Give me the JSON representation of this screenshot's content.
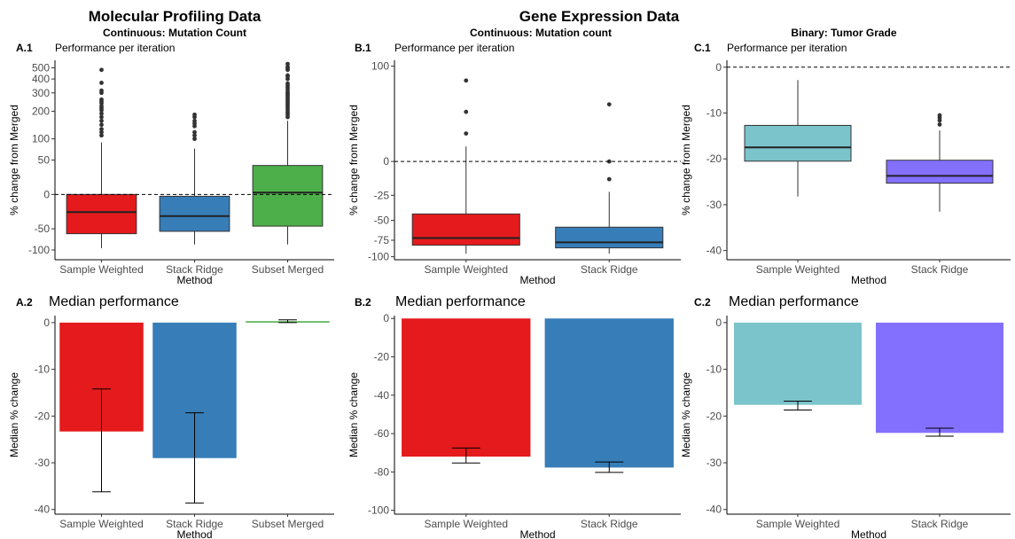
{
  "figure": {
    "left_title": "Molecular Profiling Data",
    "right_title": "Gene Expression Data",
    "colors": {
      "Sample Weighted red": "#e41a1c",
      "Stack Ridge blue": "#377eb8",
      "Subset Merged green": "#4daf4a",
      "Sample Weighted teal": "#7bc4cc",
      "Stack Ridge purple": "#8470ff"
    }
  },
  "chart_data": [
    {
      "id": "A1",
      "panel_label": "A.1",
      "type": "boxplot",
      "group_title": "Continuous: Mutation Count",
      "subtitle": "Performance per iteration",
      "xlabel": "Method",
      "ylabel": "% change from Merged",
      "categories": [
        "Sample Weighted",
        "Stack Ridge",
        "Subset Merged"
      ],
      "colors": [
        "#e41a1c",
        "#377eb8",
        "#4daf4a"
      ],
      "y_scale": "pseudo-log (compressed near 0)",
      "yticks": [
        -100,
        -50,
        0,
        50,
        100,
        200,
        300,
        400,
        500
      ],
      "ylim": [
        -130,
        580
      ],
      "reference_line": 0,
      "boxes": [
        {
          "min": -95,
          "q1": -60,
          "median": -22,
          "q3": 0,
          "max": 90,
          "outliers": [
            110,
            120,
            130,
            145,
            160,
            175,
            190,
            205,
            215,
            225,
            240,
            250,
            260,
            300,
            315,
            370,
            480
          ]
        },
        {
          "min": -85,
          "q1": -55,
          "median": -28,
          "q3": -2,
          "max": 75,
          "outliers": [
            100,
            110,
            120,
            140,
            150,
            160,
            175,
            185
          ]
        },
        {
          "min": -85,
          "q1": -45,
          "median": 2,
          "q3": 40,
          "max": 160,
          "outliers": [
            175,
            185,
            195,
            205,
            215,
            225,
            235,
            245,
            255,
            265,
            275,
            285,
            295,
            305,
            320,
            335,
            350,
            365,
            400,
            420,
            430,
            480,
            495,
            510,
            540
          ]
        }
      ]
    },
    {
      "id": "B1",
      "panel_label": "B.1",
      "type": "boxplot",
      "group_title": "Continuous: Mutation count",
      "subtitle": "Performance per iteration",
      "xlabel": "Method",
      "ylabel": "% change from Merged",
      "categories": [
        "Sample Weighted",
        "Stack Ridge"
      ],
      "colors": [
        "#e41a1c",
        "#377eb8"
      ],
      "y_scale": "pseudo-log (compressed near 0)",
      "yticks": [
        -100,
        -75,
        -50,
        -25,
        0,
        100
      ],
      "ylim": [
        -105,
        110
      ],
      "reference_line": 0,
      "boxes": [
        {
          "min": -95,
          "q1": -82,
          "median": -72,
          "q3": -43,
          "max": 10,
          "outliers": [
            20,
            40,
            78
          ]
        },
        {
          "min": -95,
          "q1": -86,
          "median": -78,
          "q3": -58,
          "max": -22,
          "outliers": [
            -12,
            0,
            48
          ]
        }
      ]
    },
    {
      "id": "C1",
      "panel_label": "C.1",
      "type": "boxplot",
      "group_title": "Binary: Tumor Grade",
      "subtitle": "Performance per iteration",
      "xlabel": "Method",
      "ylabel": "% change from Merged",
      "categories": [
        "Sample Weighted",
        "Stack Ridge"
      ],
      "colors": [
        "#7bc4cc",
        "#8470ff"
      ],
      "y_scale": "linear",
      "yticks": [
        -40,
        -30,
        -20,
        -10,
        0
      ],
      "ylim": [
        -42,
        1.5
      ],
      "reference_line": 0,
      "boxes": [
        {
          "min": -28.2,
          "q1": -20.5,
          "median": -17.5,
          "q3": -12.7,
          "max": -2.8,
          "outliers": []
        },
        {
          "min": -31.5,
          "q1": -25.3,
          "median": -23.7,
          "q3": -20.3,
          "max": -13.8,
          "outliers": [
            -10.5,
            -11.0,
            -11.6,
            -12.5
          ]
        }
      ]
    },
    {
      "id": "A2",
      "panel_label": "A.2",
      "type": "bar",
      "subtitle": "Median performance",
      "xlabel": "Method",
      "ylabel": "Median % change",
      "categories": [
        "Sample Weighted",
        "Stack Ridge",
        "Subset Merged"
      ],
      "colors": [
        "#e41a1c",
        "#377eb8",
        "#4daf4a"
      ],
      "values": [
        -23.3,
        -29.0,
        0.3
      ],
      "error_low": [
        -36.2,
        -38.6,
        0.0
      ],
      "error_high": [
        -14.2,
        -19.3,
        0.6
      ],
      "yticks": [
        -40,
        -30,
        -20,
        -10,
        0
      ],
      "ylim": [
        -41,
        1.5
      ]
    },
    {
      "id": "B2",
      "panel_label": "B.2",
      "type": "bar",
      "subtitle": "Median performance",
      "xlabel": "Method",
      "ylabel": "Median % change",
      "categories": [
        "Sample Weighted",
        "Stack Ridge"
      ],
      "colors": [
        "#e41a1c",
        "#377eb8"
      ],
      "values": [
        -72.0,
        -77.7
      ],
      "error_low": [
        -75.3,
        -80.2
      ],
      "error_high": [
        -67.5,
        -74.8
      ],
      "yticks": [
        -100,
        -80,
        -60,
        -40,
        -20,
        0
      ],
      "ylim": [
        -102,
        1.5
      ]
    },
    {
      "id": "C2",
      "panel_label": "C.2",
      "type": "bar",
      "subtitle": "Median performance",
      "xlabel": "Method",
      "ylabel": "Median % change",
      "categories": [
        "Sample Weighted",
        "Stack Ridge"
      ],
      "colors": [
        "#7bc4cc",
        "#8470ff"
      ],
      "values": [
        -17.6,
        -23.6
      ],
      "error_low": [
        -18.7,
        -24.3
      ],
      "error_high": [
        -16.8,
        -22.6
      ],
      "yticks": [
        -40,
        -30,
        -20,
        -10,
        0
      ],
      "ylim": [
        -41,
        1.5
      ]
    }
  ]
}
